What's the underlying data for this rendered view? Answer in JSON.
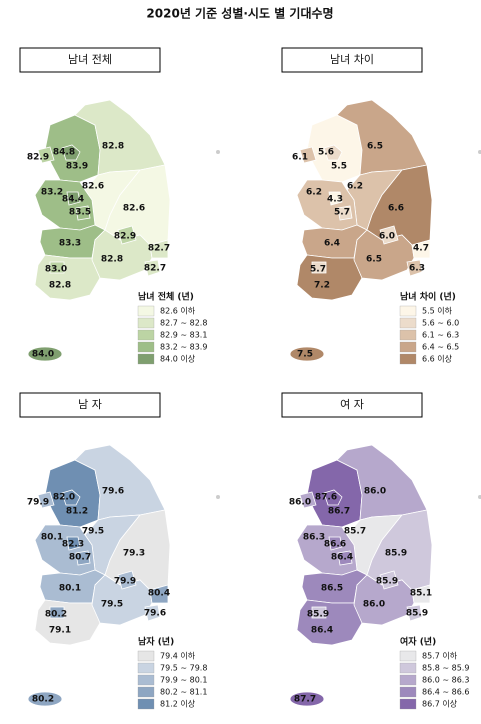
{
  "title": "2020년 기준 성별·시도 별 기대수명",
  "panels": [
    {
      "title": "남녀 전체",
      "legend": {
        "title": "남녀 전체 (년)",
        "items": [
          {
            "label": "82.6 이하",
            "color": "#f4f8e4"
          },
          {
            "label": "82.7 ~ 82.8",
            "color": "#dce8c8"
          },
          {
            "label": "82.9 ~ 83.1",
            "color": "#bcd4a4"
          },
          {
            "label": "83.2 ~ 83.9",
            "color": "#9ebe88"
          },
          {
            "label": "84.0 이상",
            "color": "#7f9f6f"
          }
        ]
      },
      "regions": [
        {
          "text": "84.8",
          "color": "#7f9f6f"
        },
        {
          "text": "82.7",
          "color": "#dce8c8"
        },
        {
          "text": "82.9",
          "color": "#bcd4a4"
        },
        {
          "text": "82.9",
          "color": "#bcd4a4"
        },
        {
          "text": "83.0",
          "color": "#bcd4a4"
        },
        {
          "text": "83.5",
          "color": "#9ebe88"
        },
        {
          "text": "82.7",
          "color": "#dce8c8"
        },
        {
          "text": "84.4",
          "color": "#7f9f6f"
        },
        {
          "text": "83.9",
          "color": "#9ebe88"
        },
        {
          "text": "82.8",
          "color": "#dce8c8"
        },
        {
          "text": "82.6",
          "color": "#f4f8e4"
        },
        {
          "text": "83.2",
          "color": "#9ebe88"
        },
        {
          "text": "83.3",
          "color": "#9ebe88"
        },
        {
          "text": "82.8",
          "color": "#dce8c8"
        },
        {
          "text": "82.6",
          "color": "#f4f8e4"
        },
        {
          "text": "82.8",
          "color": "#dce8c8"
        },
        {
          "text": "84.0",
          "color": "#7f9f6f"
        }
      ]
    },
    {
      "title": "남녀 차이",
      "legend": {
        "title": "남녀 차이 (년)",
        "items": [
          {
            "label": "5.5 이하",
            "color": "#fdf6e8"
          },
          {
            "label": "5.6 ~ 6.0",
            "color": "#ecdccb"
          },
          {
            "label": "6.1 ~ 6.3",
            "color": "#dcc2aa"
          },
          {
            "label": "6.4 ~ 6.5",
            "color": "#c9a68a"
          },
          {
            "label": "6.6 이상",
            "color": "#b08868"
          }
        ]
      },
      "regions": [
        {
          "text": "5.6",
          "color": "#ecdccb"
        },
        {
          "text": "6.3",
          "color": "#dcc2aa"
        },
        {
          "text": "6.0",
          "color": "#ecdccb"
        },
        {
          "text": "6.1",
          "color": "#dcc2aa"
        },
        {
          "text": "5.7",
          "color": "#ecdccb"
        },
        {
          "text": "5.7",
          "color": "#ecdccb"
        },
        {
          "text": "4.7",
          "color": "#fdf6e8"
        },
        {
          "text": "4.3",
          "color": "#fdf6e8"
        },
        {
          "text": "5.5",
          "color": "#fdf6e8"
        },
        {
          "text": "6.5",
          "color": "#c9a68a"
        },
        {
          "text": "6.2",
          "color": "#dcc2aa"
        },
        {
          "text": "6.2",
          "color": "#dcc2aa"
        },
        {
          "text": "6.4",
          "color": "#c9a68a"
        },
        {
          "text": "7.2",
          "color": "#b08868"
        },
        {
          "text": "6.6",
          "color": "#b08868"
        },
        {
          "text": "6.5",
          "color": "#c9a68a"
        },
        {
          "text": "7.5",
          "color": "#b08868"
        }
      ]
    },
    {
      "title": "남 자",
      "legend": {
        "title": "남자 (년)",
        "items": [
          {
            "label": "79.4 이하",
            "color": "#e6e6e6"
          },
          {
            "label": "79.5 ~ 79.8",
            "color": "#c9d4e2"
          },
          {
            "label": "79.9 ~ 80.1",
            "color": "#aabcd2"
          },
          {
            "label": "80.2 ~ 81.1",
            "color": "#8ea6c2"
          },
          {
            "label": "81.2 이상",
            "color": "#6f8fb2"
          }
        ]
      },
      "regions": [
        {
          "text": "82.0",
          "color": "#6f8fb2"
        },
        {
          "text": "79.6",
          "color": "#c9d4e2"
        },
        {
          "text": "79.9",
          "color": "#aabcd2"
        },
        {
          "text": "79.9",
          "color": "#aabcd2"
        },
        {
          "text": "80.2",
          "color": "#8ea6c2"
        },
        {
          "text": "80.7",
          "color": "#8ea6c2"
        },
        {
          "text": "80.4",
          "color": "#8ea6c2"
        },
        {
          "text": "82.3",
          "color": "#6f8fb2"
        },
        {
          "text": "81.2",
          "color": "#6f8fb2"
        },
        {
          "text": "79.6",
          "color": "#c9d4e2"
        },
        {
          "text": "79.5",
          "color": "#c9d4e2"
        },
        {
          "text": "80.1",
          "color": "#aabcd2"
        },
        {
          "text": "80.1",
          "color": "#aabcd2"
        },
        {
          "text": "79.1",
          "color": "#e6e6e6"
        },
        {
          "text": "79.3",
          "color": "#e6e6e6"
        },
        {
          "text": "79.5",
          "color": "#c9d4e2"
        },
        {
          "text": "80.2",
          "color": "#8ea6c2"
        }
      ]
    },
    {
      "title": "여 자",
      "legend": {
        "title": "여자 (년)",
        "items": [
          {
            "label": "85.7 이하",
            "color": "#e8e8ea"
          },
          {
            "label": "85.8 ~ 85.9",
            "color": "#cfc8dc"
          },
          {
            "label": "86.0 ~ 86.3",
            "color": "#b6a8cc"
          },
          {
            "label": "86.4 ~ 86.6",
            "color": "#9d89bc"
          },
          {
            "label": "86.7 이상",
            "color": "#8467aa"
          }
        ]
      },
      "regions": [
        {
          "text": "87.6",
          "color": "#8467aa"
        },
        {
          "text": "85.9",
          "color": "#cfc8dc"
        },
        {
          "text": "85.9",
          "color": "#cfc8dc"
        },
        {
          "text": "86.0",
          "color": "#b6a8cc"
        },
        {
          "text": "85.9",
          "color": "#cfc8dc"
        },
        {
          "text": "86.4",
          "color": "#9d89bc"
        },
        {
          "text": "85.1",
          "color": "#e8e8ea"
        },
        {
          "text": "86.6",
          "color": "#9d89bc"
        },
        {
          "text": "86.7",
          "color": "#8467aa"
        },
        {
          "text": "86.0",
          "color": "#b6a8cc"
        },
        {
          "text": "85.7",
          "color": "#e8e8ea"
        },
        {
          "text": "86.3",
          "color": "#b6a8cc"
        },
        {
          "text": "86.5",
          "color": "#9d89bc"
        },
        {
          "text": "86.4",
          "color": "#9d89bc"
        },
        {
          "text": "85.9",
          "color": "#cfc8dc"
        },
        {
          "text": "86.0",
          "color": "#b6a8cc"
        },
        {
          "text": "87.7",
          "color": "#8467aa"
        }
      ]
    }
  ]
}
